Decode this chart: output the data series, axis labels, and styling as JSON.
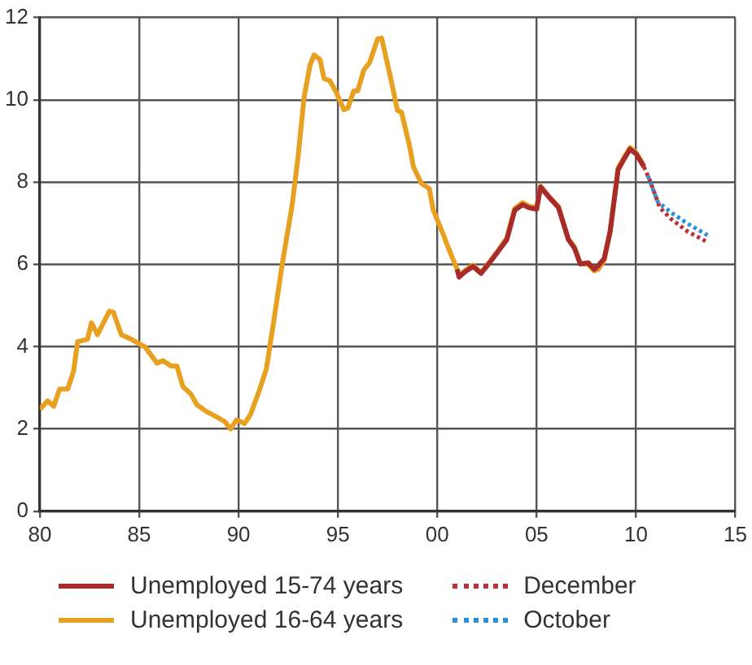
{
  "chart_data": {
    "type": "line",
    "xlim": [
      1980,
      2015
    ],
    "xticks": [
      {
        "value": 1980,
        "label": "80"
      },
      {
        "value": 1985,
        "label": "85"
      },
      {
        "value": 1990,
        "label": "90"
      },
      {
        "value": 1995,
        "label": "95"
      },
      {
        "value": 2000,
        "label": "00"
      },
      {
        "value": 2005,
        "label": "05"
      },
      {
        "value": 2010,
        "label": "10"
      },
      {
        "value": 2015,
        "label": "15"
      }
    ],
    "ylim": [
      0,
      12
    ],
    "yticks": [
      0,
      2,
      4,
      6,
      8,
      10,
      12
    ],
    "grid": true,
    "legend": "bottom",
    "marker": "none",
    "series": [
      {
        "name": "Unemployed 15-74 years",
        "color": "#a82a2a",
        "line_style": "solid",
        "x": [
          2001.0,
          2001.1,
          2001.4,
          2001.8,
          2002.2,
          2002.7,
          2003.1,
          2003.5,
          2003.9,
          2004.3,
          2004.6,
          2005.0,
          2005.2,
          2005.6,
          2006.1,
          2006.6,
          2006.9,
          2007.2,
          2007.6,
          2007.9,
          2008.1,
          2008.4,
          2008.7,
          2009.1,
          2009.4,
          2009.7,
          2010.0,
          2010.4
        ],
        "values": [
          5.88,
          5.69,
          5.82,
          5.95,
          5.78,
          6.08,
          6.34,
          6.6,
          7.32,
          7.45,
          7.38,
          7.34,
          7.88,
          7.65,
          7.38,
          6.6,
          6.4,
          6.01,
          6.04,
          5.88,
          5.97,
          6.14,
          6.8,
          8.3,
          8.56,
          8.8,
          8.69,
          8.37
        ]
      },
      {
        "name": "Unemployed 16-64 years",
        "color": "#e8a020",
        "line_style": "solid",
        "x": [
          1980.0,
          1980.4,
          1980.7,
          1981.0,
          1981.4,
          1981.7,
          1981.9,
          1982.4,
          1982.6,
          1982.9,
          1983.5,
          1983.7,
          1984.1,
          1984.6,
          1985.3,
          1985.9,
          1986.2,
          1986.6,
          1986.9,
          1987.2,
          1987.6,
          1987.9,
          1988.4,
          1988.9,
          1989.3,
          1989.6,
          1989.9,
          1990.3,
          1990.6,
          1991.0,
          1991.4,
          1991.8,
          1992.2,
          1992.7,
          1993.0,
          1993.3,
          1993.6,
          1993.8,
          1994.1,
          1994.3,
          1994.6,
          1994.9,
          1995.3,
          1995.5,
          1995.8,
          1996.0,
          1996.3,
          1996.6,
          1997.0,
          1997.2,
          1997.6,
          1998.0,
          1998.2,
          1998.6,
          1998.8,
          1999.2,
          1999.6,
          1999.8,
          2000.3,
          2000.5,
          2001.0,
          2001.1,
          2001.4,
          2001.8,
          2002.2,
          2002.7,
          2003.1,
          2003.5,
          2003.9,
          2004.3,
          2004.6,
          2005.0,
          2005.2,
          2005.6,
          2006.1,
          2006.6,
          2006.9,
          2007.2,
          2007.6,
          2007.9,
          2008.1,
          2008.4,
          2008.7,
          2009.1,
          2009.4,
          2009.7,
          2010.0,
          2010.4
        ],
        "values": [
          2.48,
          2.68,
          2.55,
          2.97,
          2.97,
          3.4,
          4.12,
          4.18,
          4.58,
          4.29,
          4.86,
          4.84,
          4.29,
          4.18,
          3.99,
          3.6,
          3.66,
          3.53,
          3.53,
          3.03,
          2.85,
          2.59,
          2.42,
          2.29,
          2.18,
          2.0,
          2.22,
          2.13,
          2.35,
          2.87,
          3.46,
          4.71,
          6.01,
          7.45,
          8.63,
          10.07,
          10.85,
          11.09,
          10.98,
          10.52,
          10.46,
          10.2,
          9.76,
          9.8,
          10.22,
          10.22,
          10.72,
          10.91,
          11.48,
          11.5,
          10.65,
          9.74,
          9.7,
          8.89,
          8.37,
          7.97,
          7.84,
          7.32,
          6.73,
          6.47,
          5.88,
          5.72,
          5.85,
          5.98,
          5.8,
          6.1,
          6.36,
          6.64,
          7.36,
          7.5,
          7.42,
          7.38,
          7.9,
          7.66,
          7.4,
          6.62,
          6.42,
          6.03,
          6.0,
          5.84,
          5.88,
          6.1,
          6.8,
          8.34,
          8.6,
          8.84,
          8.72,
          8.4
        ]
      },
      {
        "name": "December",
        "color": "#b8323a",
        "line_style": "dotted",
        "x": [
          2010.4,
          2010.7,
          2011.2,
          2011.8,
          2012.6,
          2013.6
        ],
        "values": [
          8.37,
          8.04,
          7.38,
          7.09,
          6.8,
          6.54
        ]
      },
      {
        "name": "October",
        "color": "#2a8fd8",
        "line_style": "dotted",
        "x": [
          2010.6,
          2011.1,
          2011.8,
          2012.6,
          2013.6
        ],
        "values": [
          8.15,
          7.52,
          7.25,
          6.99,
          6.71
        ]
      }
    ]
  }
}
